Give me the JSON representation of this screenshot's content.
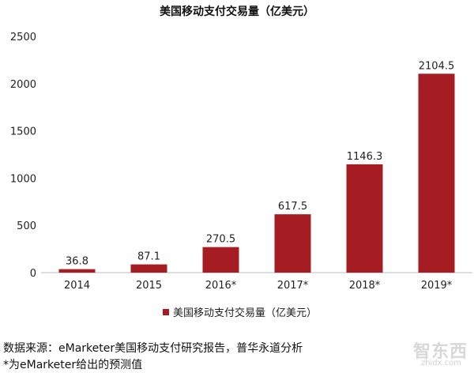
{
  "chart_data": {
    "type": "bar",
    "title": "美国移动支付交易量（亿美元）",
    "categories": [
      "2014",
      "2015",
      "2016*",
      "2017*",
      "2018*",
      "2019*"
    ],
    "series": [
      {
        "name": "美国移动支付交易量（亿美元）",
        "values": [
          36.8,
          87.1,
          270.5,
          617.5,
          1146.3,
          2104.5
        ]
      }
    ],
    "value_labels": [
      "36.8",
      "87.1",
      "270.5",
      "617.5",
      "1146.3",
      "2104.5"
    ],
    "ylim": [
      0,
      2500
    ],
    "yticks": [
      0,
      500,
      1000,
      1500,
      2000,
      2500
    ],
    "grid": false,
    "legend_position": "bottom",
    "bar_color": "#a51c22"
  },
  "notes": {
    "source": "数据来源：eMarketer美国移动支付研究报告，普华永道分析",
    "forecast": "*为eMarketer给出的预测值"
  },
  "watermark": {
    "text": "智东西",
    "sub": "zhidx.com"
  }
}
